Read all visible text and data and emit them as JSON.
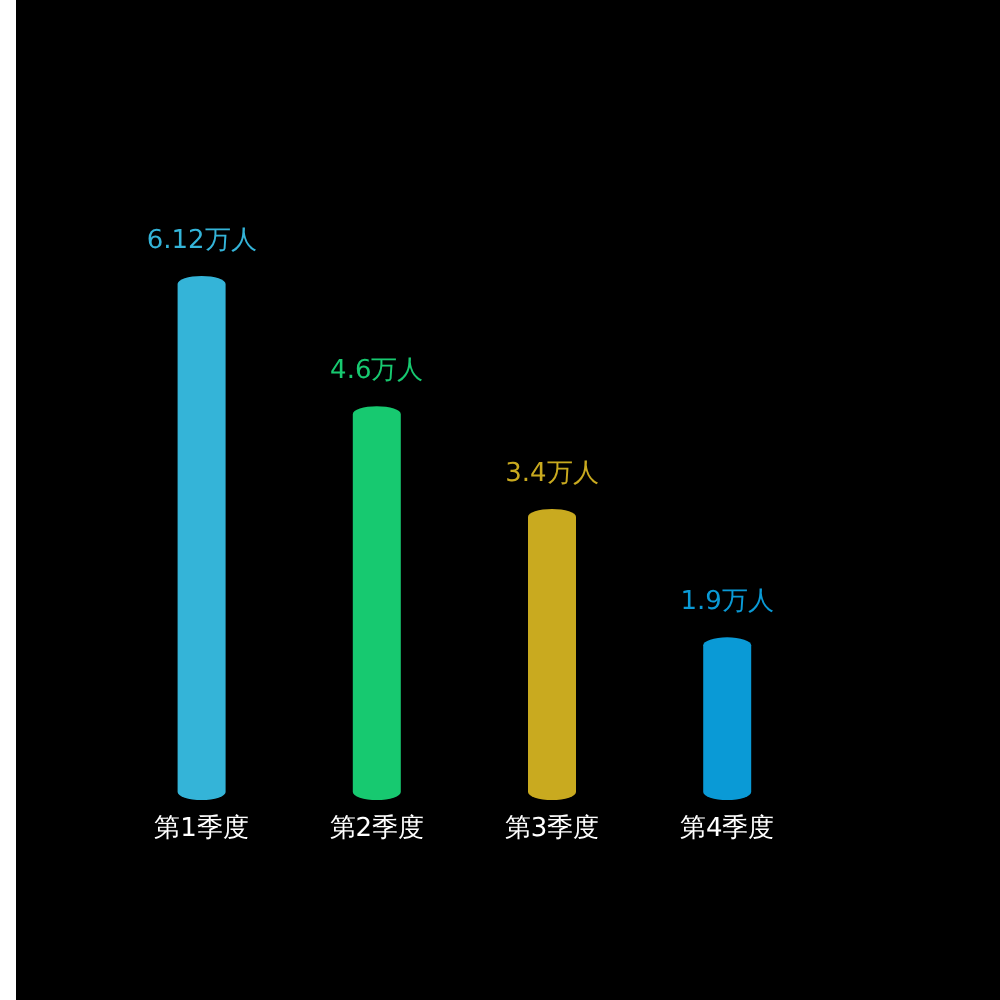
{
  "chart_data": {
    "type": "bar",
    "categories": [
      "第1季度",
      "第2季度",
      "第3季度",
      "第4季度"
    ],
    "values": [
      6.12,
      4.6,
      3.4,
      1.9
    ],
    "value_labels": [
      "6.12万人",
      "4.6万人",
      "3.4万人",
      "1.9万人"
    ],
    "colors": [
      "#34b4d8",
      "#17c970",
      "#c9aa1f",
      "#0a9ad6"
    ]
  }
}
